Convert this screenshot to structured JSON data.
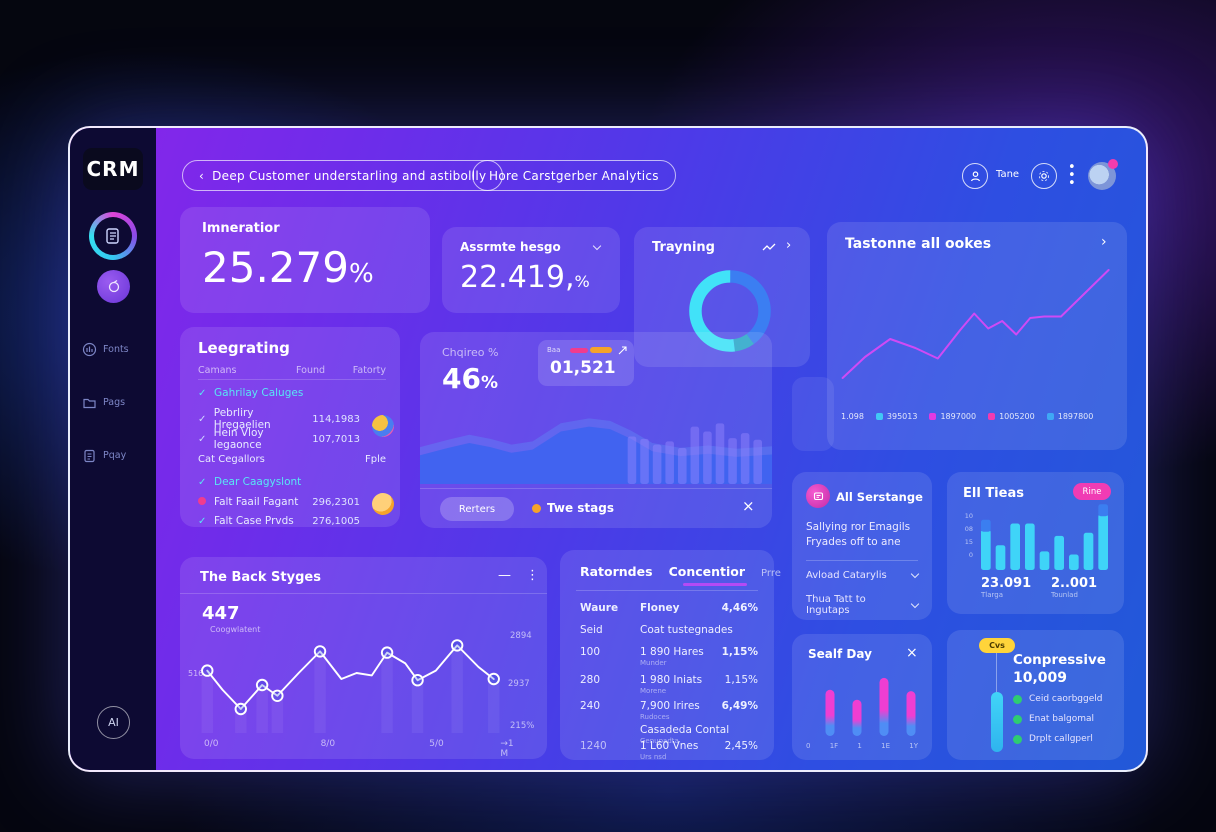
{
  "app": {
    "logo": "CRM",
    "ai_badge": "AI"
  },
  "sidebar": {
    "items": [
      {
        "label": "Fonts"
      },
      {
        "label": "Pags"
      },
      {
        "label": "Pqay"
      }
    ]
  },
  "topbar": {
    "back_arrow": "‹",
    "pill1": "Deep Customer understarling and astibollly",
    "pill2": "Hore Carstgerber Analytics",
    "user_label": "Tane"
  },
  "cards": {
    "imneratior": {
      "title": "Imneratior",
      "value": "25.279",
      "unit": "%"
    },
    "assrmte": {
      "title": "Assrmte hesgo",
      "value": "22.419,",
      "unit": "%"
    },
    "trayning": {
      "title": "Trayning",
      "arrow": "›"
    },
    "tastonne": {
      "title": "Tastonne all ookes",
      "arrow": "›",
      "legend": [
        {
          "label": "1.098",
          "color": null
        },
        {
          "label": "395013",
          "color": "#41c8f5"
        },
        {
          "label": "1897000",
          "color": "#e23ae2"
        },
        {
          "label": "1005200",
          "color": "#f23bb0"
        },
        {
          "label": "1897800",
          "color": "#3fa8f5"
        }
      ]
    },
    "leegrating": {
      "title": "Leegrating",
      "headers": {
        "c1": "Camans",
        "c2": "Found",
        "c3": "Fatorty"
      },
      "rows": [
        {
          "icon": "check",
          "text": "Gahrilay Caluges",
          "value": ""
        },
        {
          "icon": "check",
          "text": "Pebrliry Hregaelien",
          "value": "114,1983"
        },
        {
          "icon": "check",
          "text": "Hein Vloy Iegaonce",
          "value": "107,7013"
        },
        {
          "icon": "section",
          "text": "Cat Cegallors",
          "value": "Fple"
        },
        {
          "icon": "check",
          "text": "Dear Caagyslont",
          "value": ""
        },
        {
          "icon": "dot",
          "text": "Falt Faail Fagant",
          "value": "296,2301"
        },
        {
          "icon": "check",
          "text": "Falt Case Prvds",
          "value": "276,1005"
        }
      ]
    },
    "engagement": {
      "label": "Chqireo %",
      "value": "46",
      "unit": "%",
      "badge": {
        "tag": "Baa",
        "value": "01,521"
      },
      "footer": {
        "button": "Rerters",
        "status": "Twe stags",
        "close": "×"
      }
    },
    "serstange": {
      "title": "All Serstange",
      "body1": "Sallying ror Emagils",
      "body2": "Fryades off to ane",
      "dropdown1": "Avload Catarylis",
      "dropdown2": "Thua Tatt to Ingutaps"
    },
    "elltieas": {
      "title": "Ell Tieas",
      "badge": "Rine",
      "yticks": [
        "10",
        "08",
        "15",
        "0"
      ],
      "stat1": {
        "value": "23.091",
        "label": "Tlarga"
      },
      "stat2": {
        "value": "2..001",
        "label": "Tounlad"
      }
    },
    "backstyges": {
      "title": "The Back Styges",
      "minimize": "—",
      "menu": "⋮",
      "value": "447",
      "sublabel": "Coogwlatent",
      "left_label": "516",
      "right_labels": [
        "2894",
        "2937",
        "215%"
      ],
      "xticks": [
        "0/0",
        "8/0",
        "5/0",
        "→1 M"
      ]
    },
    "ratorndes": {
      "tabs": [
        "Ratorndes",
        "Concentior",
        "Prre"
      ],
      "rows": [
        {
          "c1": "Waure",
          "c2": "Floney",
          "c2sub": "",
          "c3": "4,46%"
        },
        {
          "c1": "Seid",
          "c2": "Coat tustegnades",
          "c2sub": "",
          "c3": ""
        },
        {
          "c1": "100",
          "c2": "1 890 Hares",
          "c2sub": "Munder",
          "c3": "1,15%"
        },
        {
          "c1": "280",
          "c2": "1 980 Iniats",
          "c2sub": "Morene",
          "c3": "1,15%"
        },
        {
          "c1": "240",
          "c2": "7,900 Irires",
          "c2sub": "Rudoces",
          "c2b": "Casadeda Contal",
          "c2bsub": "Genupadta",
          "c3": "6,49%"
        },
        {
          "c1": "1240",
          "c2": "1 L60 Vnes",
          "c2sub": "Urs nsd",
          "c3": "2,45%"
        }
      ]
    },
    "sealfday": {
      "title": "Sealf Day",
      "close": "×",
      "xticks": [
        "0",
        "1F",
        "1",
        "1E",
        "1Y"
      ]
    },
    "conpressive": {
      "badge": "Cvs",
      "title": "Conpressive",
      "value": "10,009",
      "items": [
        "Ceid caorbggeld",
        "Enat balgomal",
        "Drplt callgperl"
      ]
    }
  },
  "colors": {
    "cyan": "#3fd9f2",
    "blue": "#3b7ef0",
    "magenta": "#e43ad2",
    "pink_badge": "#f03cb4",
    "orange": "#f5a32a",
    "yellow": "#ffd43a",
    "green": "#2ecc71"
  },
  "chart_data": [
    {
      "name": "trayning_donut",
      "type": "pie",
      "title": "Trayning",
      "values": [
        40,
        8,
        52
      ],
      "colors": [
        "#3b7ef2",
        "#2ea8c9",
        "#41e2f8"
      ],
      "legend_position": "none"
    },
    {
      "name": "tastonne_line",
      "type": "line",
      "title": "Tastonne all ookes",
      "color": "#cf4af5",
      "points": [
        [
          2,
          20
        ],
        [
          10,
          34
        ],
        [
          19,
          46
        ],
        [
          28,
          40
        ],
        [
          36,
          33
        ],
        [
          44,
          52
        ],
        [
          49,
          63
        ],
        [
          54,
          53
        ],
        [
          59,
          58
        ],
        [
          64,
          49
        ],
        [
          69,
          60
        ],
        [
          74,
          61
        ],
        [
          80,
          61
        ],
        [
          97,
          92
        ]
      ],
      "grid": false
    },
    {
      "name": "engagement_area_bars",
      "type": "area",
      "area_color": "#3f63ef",
      "area_back_color": "#5f86f7",
      "area_points": [
        [
          0,
          35
        ],
        [
          8,
          44
        ],
        [
          14,
          50
        ],
        [
          20,
          45
        ],
        [
          26,
          38
        ],
        [
          32,
          42
        ],
        [
          40,
          64
        ],
        [
          48,
          70
        ],
        [
          54,
          67
        ],
        [
          60,
          55
        ],
        [
          66,
          40
        ],
        [
          74,
          34
        ],
        [
          82,
          37
        ],
        [
          90,
          33
        ],
        [
          100,
          36
        ]
      ],
      "bar_color": "rgba(150,135,255,0.45)",
      "bar_values": [
        58,
        55,
        48,
        52,
        44,
        70,
        64,
        74,
        56,
        62,
        54
      ],
      "bar_start_pct": 59
    },
    {
      "name": "back_styges_line",
      "type": "line",
      "title": "The Back Styges",
      "color": "#ffffff",
      "points_with_markers": [
        [
          3,
          52,
          1
        ],
        [
          8,
          36,
          0
        ],
        [
          14,
          20,
          1
        ],
        [
          21,
          40,
          1
        ],
        [
          26,
          31,
          1
        ],
        [
          33,
          50,
          0
        ],
        [
          40,
          68,
          1
        ],
        [
          47,
          45,
          0
        ],
        [
          52,
          50,
          0
        ],
        [
          57,
          48,
          0
        ],
        [
          62,
          67,
          1
        ],
        [
          68,
          58,
          0
        ],
        [
          72,
          44,
          1
        ],
        [
          78,
          52,
          0
        ],
        [
          85,
          73,
          1
        ],
        [
          92,
          55,
          0
        ],
        [
          97,
          45,
          1
        ]
      ]
    },
    {
      "name": "ell_tieas_bars",
      "type": "bar",
      "title": "Ell Tieas",
      "values": [
        6.5,
        4,
        7.5,
        7.5,
        3,
        5.5,
        2.5,
        6,
        9
      ],
      "ylim": [
        0,
        10
      ],
      "color": "#3fd4f8",
      "cap_color": "#3b7ef0",
      "cap_indexes": [
        0,
        8
      ]
    },
    {
      "name": "sealf_day_bars",
      "type": "bar",
      "title": "Sealf Day",
      "values": [
        70,
        55,
        88,
        68
      ],
      "ylim": [
        0,
        100
      ],
      "gradient": [
        "#ef3ed2",
        "#4f8df5"
      ]
    }
  ]
}
